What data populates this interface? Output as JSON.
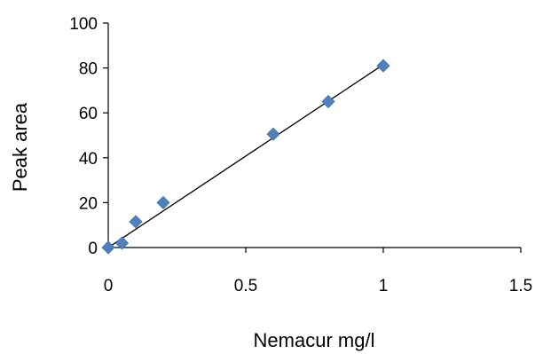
{
  "chart_data": {
    "type": "scatter",
    "title": "",
    "xlabel": "Nemacur mg/l",
    "ylabel": "Peak area",
    "xlim": [
      0,
      1.5
    ],
    "ylim": [
      0,
      100
    ],
    "xticks": [
      0,
      0.5,
      1,
      1.5
    ],
    "xtick_labels": [
      "0",
      "0.5",
      "1",
      "1.5"
    ],
    "yticks": [
      0,
      20,
      40,
      60,
      80,
      100
    ],
    "ytick_labels": [
      "0",
      "20",
      "40",
      "60",
      "80",
      "100"
    ],
    "grid": false,
    "legend": "none",
    "series": [
      {
        "marker": "diamond",
        "color": "#4F81BD",
        "x": [
          0,
          0.05,
          0.1,
          0.2,
          0.6,
          0.8,
          1.0
        ],
        "y": [
          0,
          2,
          11.5,
          20,
          50.5,
          65,
          81
        ]
      }
    ],
    "trendline": {
      "type": "linear",
      "color": "#000000",
      "x": [
        0,
        1.0
      ],
      "y": [
        0,
        81.5
      ]
    }
  }
}
